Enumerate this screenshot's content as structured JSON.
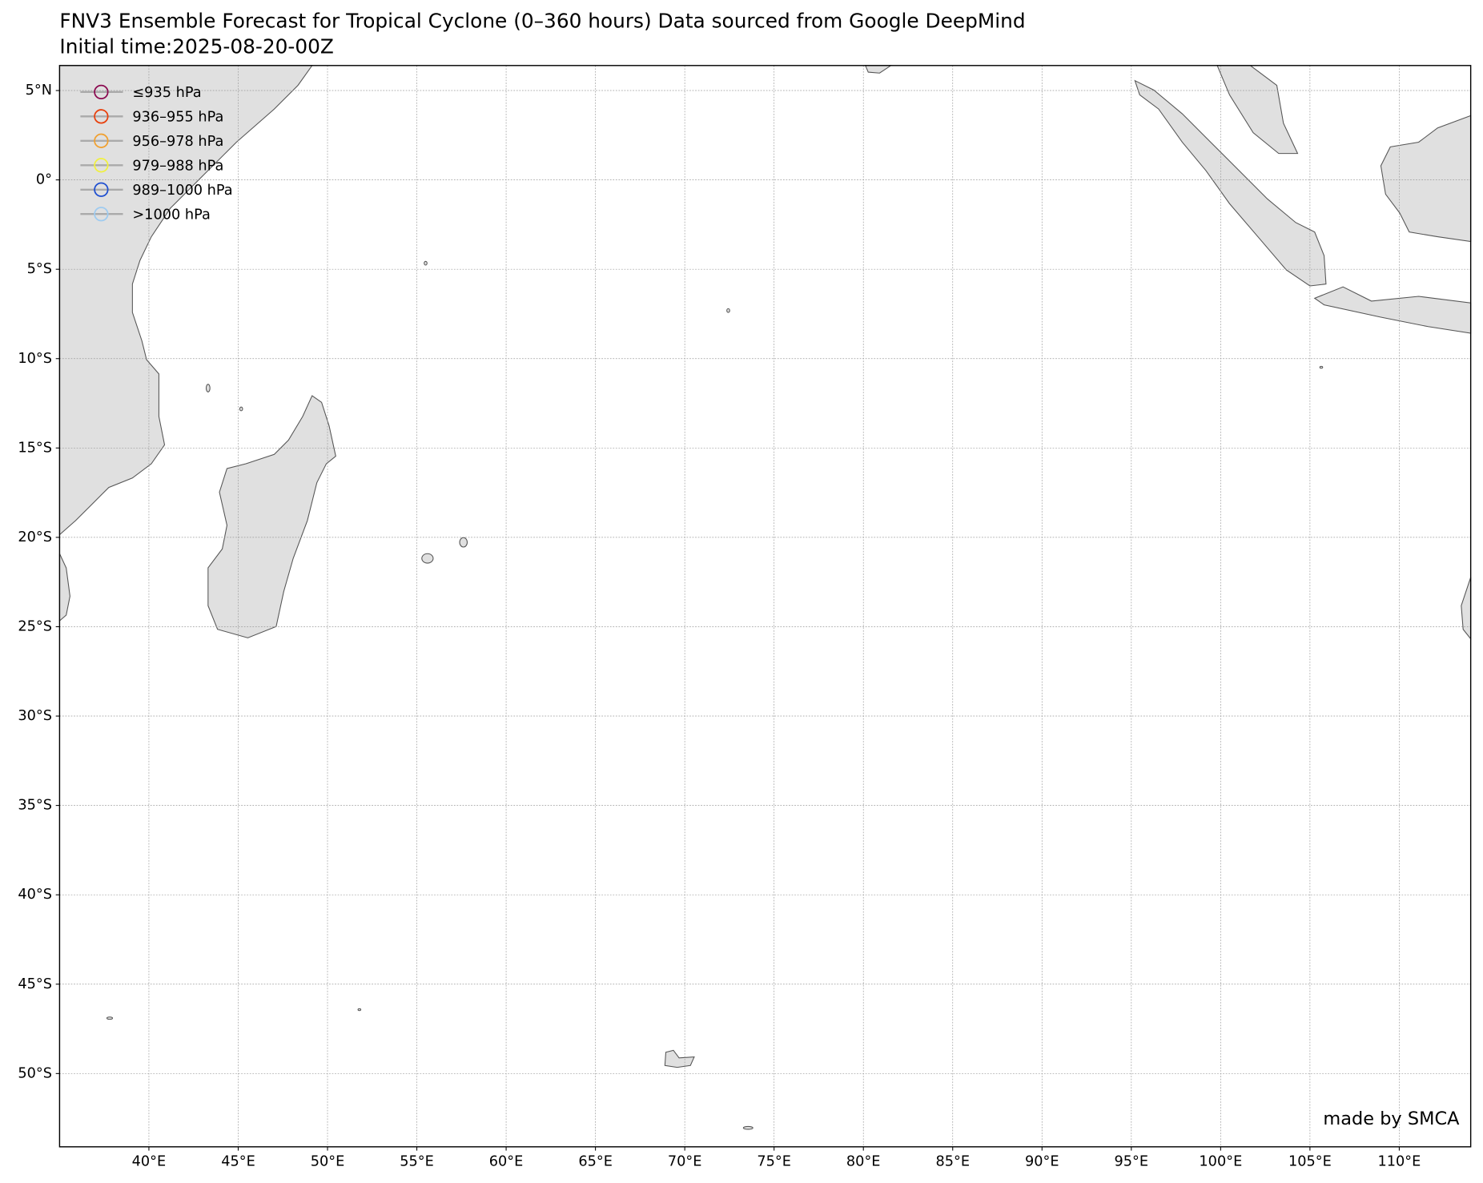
{
  "chart_data": {
    "type": "map",
    "title": "FNV3 Ensemble Forecast for Tropical Cyclone (0–360 hours) Data sourced from Google DeepMind",
    "subtitle": "Initial time:2025-08-20-00Z",
    "annotation": "made by SMCA",
    "xlim": [
      35,
      114
    ],
    "ylim": [
      -54.1,
      6.4
    ],
    "xticks": [
      {
        "value": 40,
        "label": "40°E"
      },
      {
        "value": 45,
        "label": "45°E"
      },
      {
        "value": 50,
        "label": "50°E"
      },
      {
        "value": 55,
        "label": "55°E"
      },
      {
        "value": 60,
        "label": "60°E"
      },
      {
        "value": 65,
        "label": "65°E"
      },
      {
        "value": 70,
        "label": "70°E"
      },
      {
        "value": 75,
        "label": "75°E"
      },
      {
        "value": 80,
        "label": "80°E"
      },
      {
        "value": 85,
        "label": "85°E"
      },
      {
        "value": 90,
        "label": "90°E"
      },
      {
        "value": 95,
        "label": "95°E"
      },
      {
        "value": 100,
        "label": "100°E"
      },
      {
        "value": 105,
        "label": "105°E"
      },
      {
        "value": 110,
        "label": "110°E"
      }
    ],
    "yticks": [
      {
        "value": 5,
        "label": "5°N"
      },
      {
        "value": 0,
        "label": "0°"
      },
      {
        "value": -5,
        "label": "5°S"
      },
      {
        "value": -10,
        "label": "10°S"
      },
      {
        "value": -15,
        "label": "15°S"
      },
      {
        "value": -20,
        "label": "20°S"
      },
      {
        "value": -25,
        "label": "25°S"
      },
      {
        "value": -30,
        "label": "30°S"
      },
      {
        "value": -35,
        "label": "35°S"
      },
      {
        "value": -40,
        "label": "40°S"
      },
      {
        "value": -45,
        "label": "45°S"
      },
      {
        "value": -50,
        "label": "50°S"
      }
    ],
    "grid": true,
    "legend_position": "upper left",
    "legend": [
      {
        "label": "≤935 hPa",
        "color": "#8b0a50"
      },
      {
        "label": "936–955 hPa",
        "color": "#e8400c"
      },
      {
        "label": "956–978 hPa",
        "color": "#f0a030"
      },
      {
        "label": "979–988 hPa",
        "color": "#f0f040"
      },
      {
        "label": "989–1000 hPa",
        "color": "#1f4fd0"
      },
      {
        "label": ">1000 hPa",
        "color": "#9ecbf0"
      }
    ]
  }
}
